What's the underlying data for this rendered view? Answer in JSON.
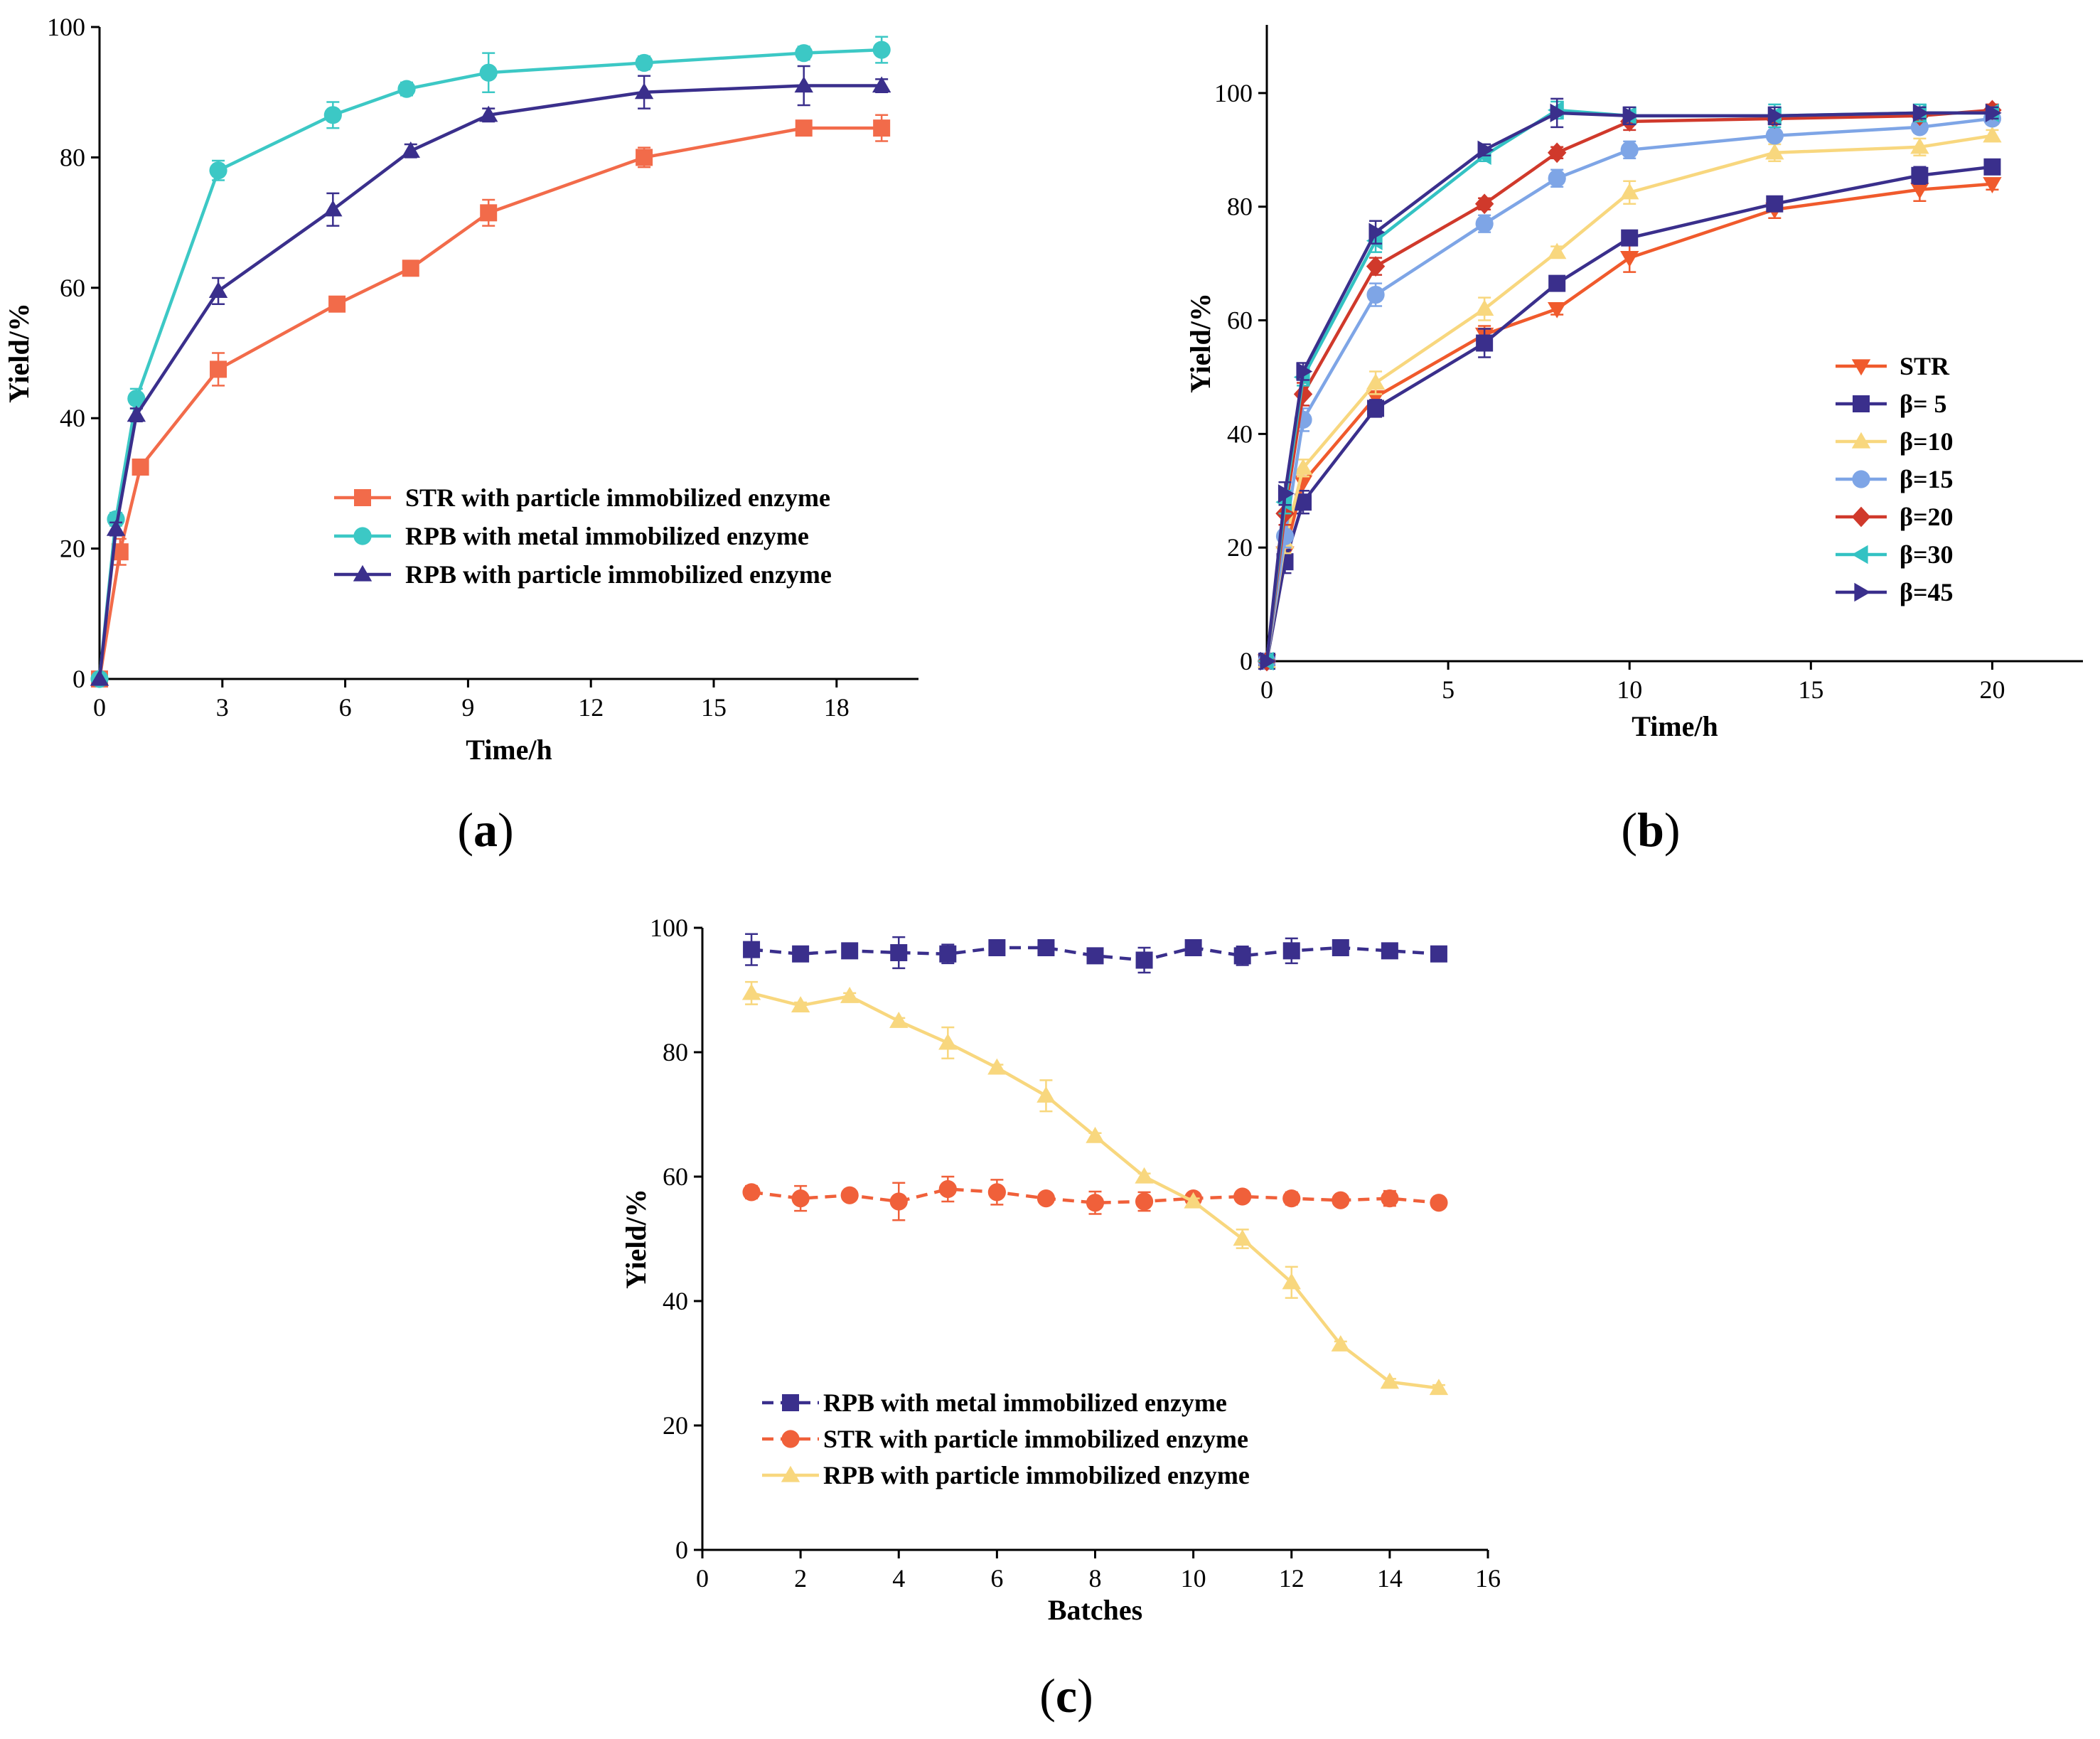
{
  "chart_data": [
    {
      "id": "a",
      "type": "line",
      "panel_label": "a",
      "xlabel": "Time/h",
      "ylabel": "Yield/%",
      "xlim": [
        0,
        20
      ],
      "ylim": [
        0,
        100
      ],
      "xticks": [
        0,
        3,
        6,
        9,
        12,
        15,
        18
      ],
      "yticks": [
        0,
        20,
        40,
        60,
        80,
        100
      ],
      "legend_position": "center-right",
      "series": [
        {
          "name": "STR with particle immobilized enzyme",
          "color": "#f26b4a",
          "marker": "square",
          "x": [
            0,
            0.5,
            1,
            2.9,
            5.8,
            7.6,
            9.5,
            13.3,
            17.2,
            19.1
          ],
          "y": [
            0,
            19.5,
            32.5,
            47.5,
            57.5,
            63,
            71.5,
            80,
            84.5,
            84.5
          ],
          "err": [
            0,
            2,
            1,
            2.5,
            1,
            1,
            2,
            1.5,
            1,
            2
          ]
        },
        {
          "name": "RPB with metal immobilized enzyme",
          "color": "#3cc8c5",
          "marker": "circle",
          "x": [
            0,
            0.4,
            0.9,
            2.9,
            5.7,
            7.5,
            9.5,
            13.3,
            17.2,
            19.1
          ],
          "y": [
            0,
            24.5,
            43,
            78,
            86.5,
            90.5,
            93,
            94.5,
            96,
            96.5
          ],
          "err": [
            0,
            1,
            1.5,
            1.5,
            2,
            1,
            3,
            1,
            1,
            2
          ]
        },
        {
          "name": "RPB with particle immobilized enzyme",
          "color": "#3a2f8c",
          "marker": "triangle",
          "x": [
            0,
            0.4,
            0.9,
            2.9,
            5.7,
            7.6,
            9.5,
            13.3,
            17.2,
            19.1
          ],
          "y": [
            0,
            23,
            40.5,
            59.5,
            72,
            81,
            86.5,
            90,
            91,
            91
          ],
          "err": [
            0,
            1,
            1,
            2,
            2.5,
            1,
            1,
            2.5,
            3,
            1
          ]
        }
      ]
    },
    {
      "id": "b",
      "type": "line",
      "panel_label": "b",
      "xlabel": "Time/h",
      "ylabel": "Yield/%",
      "xlim": [
        0,
        22.5
      ],
      "ylim": [
        0,
        112
      ],
      "xticks": [
        0,
        5,
        10,
        15,
        20
      ],
      "yticks": [
        0,
        20,
        40,
        60,
        80,
        100
      ],
      "legend_position": "right",
      "series": [
        {
          "name": "STR",
          "color": "#f05a2c",
          "marker": "triangle-down",
          "x": [
            0,
            0.5,
            1,
            3,
            6,
            8,
            10,
            14,
            18,
            20
          ],
          "y": [
            0,
            19,
            31.5,
            46.5,
            57.5,
            62,
            71,
            79.5,
            83,
            84
          ],
          "err": [
            0,
            2,
            1.5,
            2,
            1.5,
            1,
            2.5,
            1.5,
            2,
            1
          ]
        },
        {
          "name": "β= 5",
          "color": "#3a2f8c",
          "marker": "square",
          "x": [
            0,
            0.5,
            1,
            3,
            6,
            8,
            10,
            14,
            18,
            20
          ],
          "y": [
            0,
            17.5,
            28,
            44.5,
            56,
            66.5,
            74.5,
            80.5,
            85.5,
            87
          ],
          "err": [
            0,
            2,
            2,
            1.5,
            2.5,
            1,
            1,
            1,
            1.5,
            1
          ]
        },
        {
          "name": "β=10",
          "color": "#f8d77e",
          "marker": "triangle",
          "x": [
            0,
            0.5,
            1,
            3,
            6,
            8,
            10,
            14,
            18,
            20
          ],
          "y": [
            0,
            21,
            34,
            49,
            62,
            72,
            82.5,
            89.5,
            90.5,
            92.5
          ],
          "err": [
            0,
            2,
            1.5,
            2,
            2,
            1,
            2,
            1.5,
            1.5,
            1
          ]
        },
        {
          "name": "β=15",
          "color": "#7ea5e6",
          "marker": "circle",
          "x": [
            0,
            0.5,
            1,
            3,
            6,
            8,
            10,
            14,
            18,
            20
          ],
          "y": [
            0,
            22,
            42.5,
            64.5,
            77,
            85,
            90,
            92.5,
            94,
            95.5
          ],
          "err": [
            0,
            2,
            2,
            2,
            1.5,
            1.5,
            1.5,
            1,
            1,
            1
          ]
        },
        {
          "name": "β=20",
          "color": "#d0392b",
          "marker": "diamond",
          "x": [
            0,
            0.5,
            1,
            3,
            6,
            8,
            10,
            14,
            18,
            20
          ],
          "y": [
            0,
            26,
            47,
            69.5,
            80.5,
            89.5,
            95,
            95.5,
            96,
            97
          ],
          "err": [
            0,
            2,
            2,
            1.5,
            1,
            1,
            1.5,
            1,
            1,
            1
          ]
        },
        {
          "name": "β=30",
          "color": "#33c2c3",
          "marker": "triangle-left",
          "x": [
            0,
            0.5,
            1,
            3,
            6,
            8,
            10,
            14,
            18,
            20
          ],
          "y": [
            0,
            28,
            50,
            74,
            89,
            97,
            96,
            96,
            96.5,
            96.5
          ],
          "err": [
            0,
            2,
            1.5,
            2,
            1,
            1.5,
            1,
            2,
            1.5,
            1
          ]
        },
        {
          "name": "β=45",
          "color": "#3a2f8c",
          "marker": "triangle-right",
          "x": [
            0,
            0.5,
            1,
            3,
            6,
            8,
            10,
            14,
            18,
            20
          ],
          "y": [
            0,
            29.5,
            51,
            75.5,
            90,
            96.5,
            96,
            96,
            96.5,
            96.5
          ],
          "err": [
            0,
            2,
            1.5,
            2,
            1,
            2.5,
            1.5,
            1.5,
            1,
            1
          ]
        }
      ]
    },
    {
      "id": "c",
      "type": "line",
      "panel_label": "c",
      "xlabel": "Batches",
      "ylabel": "Yield/%",
      "xlim": [
        0,
        16
      ],
      "ylim": [
        0,
        100
      ],
      "xticks": [
        0,
        2,
        4,
        6,
        8,
        10,
        12,
        14,
        16
      ],
      "yticks": [
        0,
        20,
        40,
        60,
        80,
        100
      ],
      "legend_position": "lower-center",
      "series": [
        {
          "name": "RPB with metal immobilized enzyme",
          "color": "#3a2f8c",
          "marker": "square",
          "dashed": true,
          "x": [
            1,
            2,
            3,
            4,
            5,
            6,
            7,
            8,
            9,
            10,
            11,
            12,
            13,
            14,
            15
          ],
          "y": [
            96.5,
            95.8,
            96.3,
            96,
            95.8,
            96.8,
            96.8,
            95.5,
            94.8,
            96.8,
            95.5,
            96.3,
            96.8,
            96.3,
            95.8
          ],
          "err": [
            2.5,
            0.5,
            1,
            2.5,
            1.5,
            1,
            0.8,
            0.5,
            2,
            1,
            1.5,
            2,
            0.8,
            0.8,
            1
          ]
        },
        {
          "name": "STR with particle immobilized enzyme",
          "color": "#f0603a",
          "marker": "circle",
          "dashed": true,
          "x": [
            1,
            2,
            3,
            4,
            5,
            6,
            7,
            8,
            9,
            10,
            11,
            12,
            13,
            14,
            15
          ],
          "y": [
            57.5,
            56.5,
            57,
            56,
            58,
            57.5,
            56.5,
            55.8,
            56,
            56.5,
            56.8,
            56.5,
            56.2,
            56.5,
            55.8
          ],
          "err": [
            1,
            2,
            0.5,
            3,
            2,
            2,
            0.5,
            1.8,
            1.5,
            0.5,
            0.8,
            1,
            0.5,
            1.2,
            0.5
          ]
        },
        {
          "name": "RPB with particle immobilized enzyme",
          "color": "#f8d77e",
          "marker": "triangle",
          "dashed": false,
          "x": [
            1,
            2,
            3,
            4,
            5,
            6,
            7,
            8,
            9,
            10,
            11,
            12,
            13,
            14,
            15
          ],
          "y": [
            89.5,
            87.5,
            89,
            85,
            81.5,
            77.5,
            73,
            66.5,
            60,
            56,
            50,
            43,
            33,
            27,
            26
          ],
          "err": [
            1.8,
            0.5,
            0.5,
            0.5,
            2.5,
            0.5,
            2.5,
            0.5,
            0.5,
            0.5,
            1.5,
            2.5,
            0.5,
            0.5,
            0.5
          ]
        }
      ]
    }
  ]
}
